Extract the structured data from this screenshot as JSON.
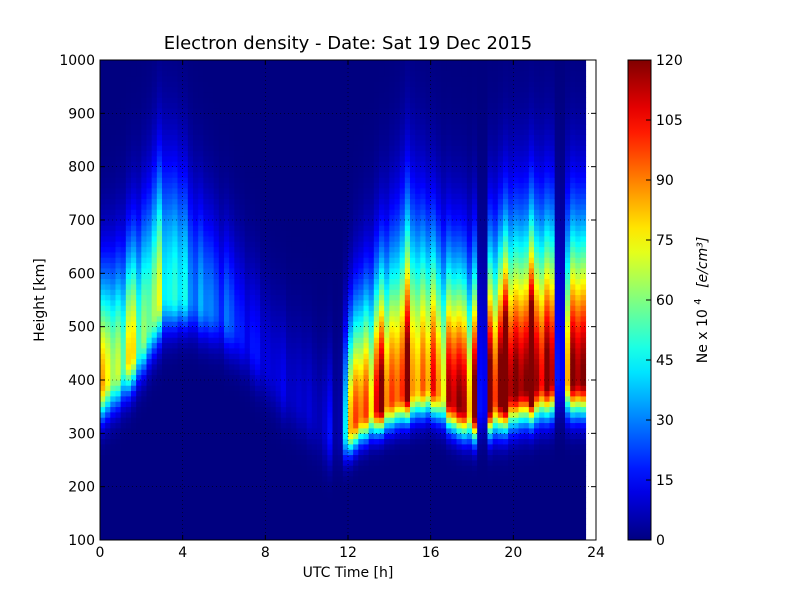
{
  "chart_data": {
    "type": "heatmap",
    "title": "Electron density - Date: Sat 19 Dec 2015",
    "xlabel": "UTC Time [h]",
    "ylabel": "Height [km]",
    "xlim": [
      0,
      24
    ],
    "ylim": [
      100,
      1000
    ],
    "x_ticks": [
      "0",
      "4",
      "8",
      "12",
      "16",
      "20",
      "24"
    ],
    "y_ticks": [
      "100",
      "200",
      "300",
      "400",
      "500",
      "600",
      "700",
      "800",
      "900",
      "1000"
    ],
    "colorbar": {
      "label_prefix": "Ne x 10",
      "label_exponent": "4",
      "label_units": "[e/cm³]",
      "range": [
        0,
        120
      ],
      "ticks": [
        "0",
        "15",
        "30",
        "45",
        "60",
        "75",
        "90",
        "105",
        "120"
      ],
      "colormap": "jet"
    },
    "grid": true,
    "data_end_hour": 23.3,
    "x_step_hours": 0.25,
    "y_step_km": 10,
    "profiles": [
      {
        "t": 0,
        "hmF2": 390,
        "peak": 82,
        "top_scale": 210,
        "bottom_scale": 60
      },
      {
        "t": 1,
        "hmF2": 420,
        "peak": 82,
        "top_scale": 220,
        "bottom_scale": 60
      },
      {
        "t": 2,
        "hmF2": 470,
        "peak": 76,
        "top_scale": 240,
        "bottom_scale": 60
      },
      {
        "t": 3,
        "hmF2": 560,
        "peak": 68,
        "top_scale": 260,
        "bottom_scale": 70
      },
      {
        "t": 4,
        "hmF2": 560,
        "peak": 48,
        "top_scale": 240,
        "bottom_scale": 60
      },
      {
        "t": 5,
        "hmF2": 540,
        "peak": 35,
        "top_scale": 200,
        "bottom_scale": 60
      },
      {
        "t": 6,
        "hmF2": 520,
        "peak": 30,
        "top_scale": 180,
        "bottom_scale": 60
      },
      {
        "t": 7,
        "hmF2": 480,
        "peak": 20,
        "top_scale": 170,
        "bottom_scale": 60
      },
      {
        "t": 8,
        "hmF2": 430,
        "peak": 14,
        "top_scale": 160,
        "bottom_scale": 60
      },
      {
        "t": 9,
        "hmF2": 380,
        "peak": 12,
        "top_scale": 160,
        "bottom_scale": 60
      },
      {
        "t": 10,
        "hmF2": 350,
        "peak": 10,
        "top_scale": 160,
        "bottom_scale": 60
      },
      {
        "t": 11,
        "hmF2": 300,
        "peak": 10,
        "top_scale": 160,
        "bottom_scale": 60
      },
      {
        "t": 11.7,
        "hmF2": 290,
        "peak": 60,
        "top_scale": 200,
        "bottom_scale": 45
      },
      {
        "t": 12.5,
        "hmF2": 330,
        "peak": 110,
        "top_scale": 230,
        "bottom_scale": 45
      },
      {
        "t": 13.5,
        "hmF2": 350,
        "peak": 120,
        "top_scale": 260,
        "bottom_scale": 45
      },
      {
        "t": 15,
        "hmF2": 380,
        "peak": 120,
        "top_scale": 330,
        "bottom_scale": 50
      },
      {
        "t": 16,
        "hmF2": 390,
        "peak": 100,
        "top_scale": 290,
        "bottom_scale": 50
      },
      {
        "t": 17,
        "hmF2": 360,
        "peak": 125,
        "top_scale": 270,
        "bottom_scale": 50
      },
      {
        "t": 18,
        "hmF2": 340,
        "peak": 135,
        "top_scale": 270,
        "bottom_scale": 50
      },
      {
        "t": 19,
        "hmF2": 360,
        "peak": 150,
        "top_scale": 290,
        "bottom_scale": 55
      },
      {
        "t": 20,
        "hmF2": 380,
        "peak": 150,
        "top_scale": 300,
        "bottom_scale": 60
      },
      {
        "t": 21,
        "hmF2": 390,
        "peak": 150,
        "top_scale": 300,
        "bottom_scale": 60
      },
      {
        "t": 22,
        "hmF2": 400,
        "peak": 140,
        "top_scale": 300,
        "bottom_scale": 60
      },
      {
        "t": 23.3,
        "hmF2": 400,
        "peak": 130,
        "top_scale": 290,
        "bottom_scale": 60
      }
    ],
    "dark_gaps_hours": [
      11.5,
      18.5,
      22.25
    ]
  }
}
